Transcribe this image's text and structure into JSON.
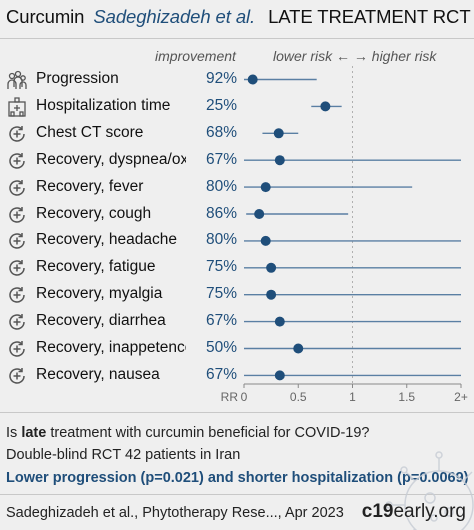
{
  "title": {
    "drug": "Curcumin",
    "author": "Sadeghizadeh et al.",
    "kind": "LATE TREATMENT RCT"
  },
  "header": {
    "improvement": "improvement",
    "risk": "lower risk ←  → higher risk"
  },
  "rows": [
    {
      "label": "Progression",
      "pct": "92%",
      "icon": "people-icon"
    },
    {
      "label": "Hospitalization time",
      "pct": "25%",
      "icon": "hospital-icon"
    },
    {
      "label": "Chest CT score",
      "pct": "68%",
      "icon": "recovery-icon"
    },
    {
      "label": "Recovery, dyspnea/ox..",
      "pct": "67%",
      "icon": "recovery-icon"
    },
    {
      "label": "Recovery, fever",
      "pct": "80%",
      "icon": "recovery-icon"
    },
    {
      "label": "Recovery, cough",
      "pct": "86%",
      "icon": "recovery-icon"
    },
    {
      "label": "Recovery, headache",
      "pct": "80%",
      "icon": "recovery-icon"
    },
    {
      "label": "Recovery, fatigue",
      "pct": "75%",
      "icon": "recovery-icon"
    },
    {
      "label": "Recovery, myalgia",
      "pct": "75%",
      "icon": "recovery-icon"
    },
    {
      "label": "Recovery, diarrhea",
      "pct": "67%",
      "icon": "recovery-icon"
    },
    {
      "label": "Recovery, inappetence",
      "pct": "50%",
      "icon": "recovery-icon"
    },
    {
      "label": "Recovery, nausea",
      "pct": "67%",
      "icon": "recovery-icon"
    }
  ],
  "chart_data": {
    "type": "scatter",
    "xlabel": "RR",
    "xlim": [
      0,
      2
    ],
    "x_tick_labels": [
      "0",
      "0.5",
      "1",
      "1.5",
      "2+"
    ],
    "x_ticks": [
      0,
      0.5,
      1,
      1.5,
      2
    ],
    "reference_line": 1,
    "categories": [
      "Progression",
      "Hospitalization time",
      "Chest CT score",
      "Recovery, dyspnea/ox..",
      "Recovery, fever",
      "Recovery, cough",
      "Recovery, headache",
      "Recovery, fatigue",
      "Recovery, myalgia",
      "Recovery, diarrhea",
      "Recovery, inappetence",
      "Recovery, nausea"
    ],
    "series": [
      {
        "rr": [
          0.08,
          0.75,
          0.32,
          0.33,
          0.2,
          0.14,
          0.2,
          0.25,
          0.25,
          0.33,
          0.5,
          0.33
        ],
        "ci_low": [
          0,
          0.62,
          0.17,
          0,
          0,
          0.02,
          0,
          0,
          0,
          0,
          0,
          0
        ],
        "ci_high": [
          0.67,
          0.9,
          0.5,
          2,
          1.55,
          0.96,
          2,
          2,
          2,
          2,
          2,
          2
        ]
      }
    ],
    "colors": {
      "point": "#1f4e7a",
      "ci": "#5a7fa3",
      "axis": "#888888"
    }
  },
  "footer": {
    "question_pre": "Is ",
    "question_bold": "late",
    "question_post": " treatment with curcumin beneficial for COVID-19?",
    "design": "Double-blind RCT 42 patients in Iran",
    "conclusion": "Lower progression (p=0.021) and shorter hospitalization (p=0.0069)",
    "citation": "Sadeghizadeh et al., Phytotherapy Rese..., Apr 2023",
    "brand_bold": "c19",
    "brand_rest": "early.org"
  }
}
